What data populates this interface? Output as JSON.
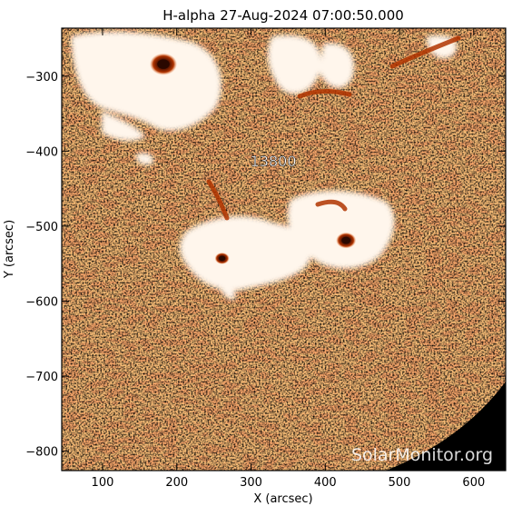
{
  "title": "H-alpha 27-Aug-2024 07:00:50.000",
  "x_axis": {
    "label": "X (arcsec)",
    "range": [
      45,
      643
    ],
    "ticks": [
      100,
      200,
      300,
      400,
      500,
      600
    ],
    "tick_labels": [
      "100",
      "200",
      "300",
      "400",
      "500",
      "600"
    ]
  },
  "y_axis": {
    "label": "Y (arcsec)",
    "range": [
      -826,
      -236
    ],
    "ticks": [
      -300,
      -400,
      -500,
      -600,
      -700,
      -800
    ],
    "tick_labels": [
      "−300",
      "−400",
      "−500",
      "−600",
      "−700",
      "−800"
    ]
  },
  "region_label": {
    "text": "13800",
    "x": 330,
    "y": -420
  },
  "watermark": "SolarMonitor.org",
  "colors": {
    "background": "#ffffff",
    "frame": "#000000",
    "chromosphere_base": "#f7a66a",
    "fibril": "#ee8a3c",
    "plage": "#fff6ec",
    "sunspot_core": "#2a0800",
    "sunspot_ring": "#b03400",
    "off_limb": "#000000"
  },
  "sunspots": [
    {
      "name": "sunspot-upper-left",
      "x": 182,
      "y": -284
    },
    {
      "name": "sunspot-center",
      "x": 261,
      "y": -543
    },
    {
      "name": "sunspot-right",
      "x": 428,
      "y": -519
    }
  ]
}
